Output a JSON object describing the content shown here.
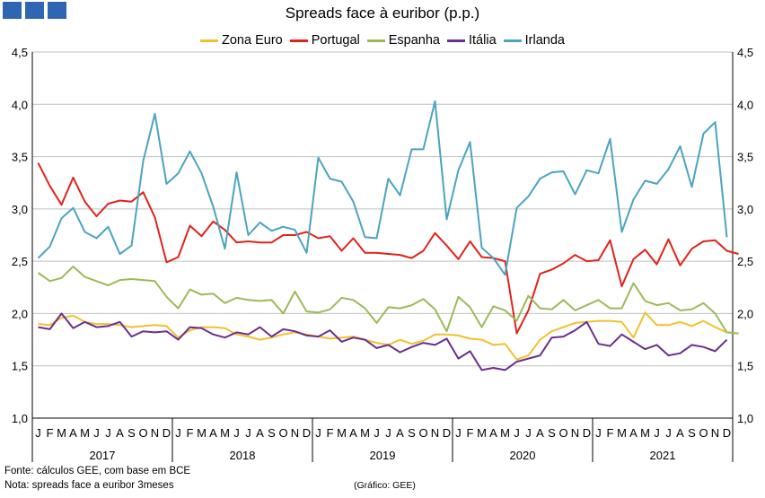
{
  "header": {
    "title": "Spreads face à euribor (p.p.)"
  },
  "footer": {
    "source": "Fonte: cálculos GEE, com base em BCE",
    "note": "Nota: spreads face a euribor 3meses",
    "credit": "(Gráfico: GEE)"
  },
  "chart_data": {
    "type": "line",
    "title": "Spreads face à euribor (p.p.)",
    "ylim": [
      1.0,
      4.5
    ],
    "yticks": [
      "1,0",
      "1,5",
      "2,0",
      "2,5",
      "3,0",
      "3,5",
      "4,0",
      "4,5"
    ],
    "month_labels": [
      "J",
      "F",
      "M",
      "A",
      "M",
      "J",
      "J",
      "A",
      "S",
      "O",
      "N",
      "D"
    ],
    "years": [
      "2017",
      "2018",
      "2019",
      "2020",
      "2021"
    ],
    "grid": true,
    "legend_position": "top",
    "series": [
      {
        "name": "Zona Euro",
        "color": "#f2c12e",
        "values": [
          1.9,
          1.89,
          1.96,
          1.98,
          1.92,
          1.9,
          1.9,
          1.89,
          1.87,
          1.88,
          1.89,
          1.88,
          1.77,
          1.84,
          1.87,
          1.87,
          1.86,
          1.8,
          1.78,
          1.75,
          1.77,
          1.8,
          1.82,
          1.8,
          1.78,
          1.76,
          1.77,
          1.78,
          1.75,
          1.72,
          1.7,
          1.75,
          1.71,
          1.74,
          1.8,
          1.8,
          1.79,
          1.76,
          1.75,
          1.7,
          1.71,
          1.56,
          1.6,
          1.75,
          1.83,
          1.87,
          1.91,
          1.92,
          1.93,
          1.93,
          1.92,
          1.77,
          2.01,
          1.89,
          1.89,
          1.92,
          1.88,
          1.93,
          1.87,
          1.82,
          1.81
        ]
      },
      {
        "name": "Portugal",
        "color": "#e0231c",
        "values": [
          3.44,
          3.22,
          3.04,
          3.3,
          3.07,
          2.93,
          3.05,
          3.08,
          3.07,
          3.16,
          2.92,
          2.49,
          2.54,
          2.84,
          2.74,
          2.88,
          2.8,
          2.68,
          2.69,
          2.68,
          2.68,
          2.75,
          2.75,
          2.78,
          2.72,
          2.74,
          2.6,
          2.72,
          2.58,
          2.58,
          2.57,
          2.56,
          2.53,
          2.6,
          2.77,
          2.65,
          2.52,
          2.69,
          2.54,
          2.53,
          2.5,
          1.81,
          2.03,
          2.38,
          2.42,
          2.48,
          2.56,
          2.5,
          2.51,
          2.7,
          2.26,
          2.52,
          2.61,
          2.47,
          2.71,
          2.46,
          2.62,
          2.69,
          2.7,
          2.6,
          2.57
        ]
      },
      {
        "name": "Espanha",
        "color": "#9bbb59",
        "values": [
          2.39,
          2.31,
          2.34,
          2.45,
          2.35,
          2.31,
          2.27,
          2.32,
          2.33,
          2.32,
          2.31,
          2.16,
          2.05,
          2.23,
          2.18,
          2.19,
          2.1,
          2.15,
          2.13,
          2.12,
          2.13,
          2.0,
          2.21,
          2.02,
          2.01,
          2.04,
          2.15,
          2.13,
          2.05,
          1.91,
          2.06,
          2.05,
          2.08,
          2.14,
          2.04,
          1.83,
          2.16,
          2.06,
          1.87,
          2.07,
          2.03,
          1.93,
          2.17,
          2.05,
          2.04,
          2.13,
          2.03,
          2.08,
          2.13,
          2.05,
          2.05,
          2.29,
          2.12,
          2.08,
          2.1,
          2.03,
          2.04,
          2.1,
          2.0,
          1.82,
          1.81
        ]
      },
      {
        "name": "Itália",
        "color": "#6a2f8f",
        "values": [
          1.87,
          1.85,
          2.0,
          1.86,
          1.92,
          1.87,
          1.88,
          1.92,
          1.78,
          1.83,
          1.82,
          1.83,
          1.75,
          1.87,
          1.86,
          1.8,
          1.77,
          1.82,
          1.8,
          1.87,
          1.78,
          1.85,
          1.83,
          1.79,
          1.78,
          1.84,
          1.73,
          1.77,
          1.75,
          1.67,
          1.7,
          1.63,
          1.68,
          1.72,
          1.7,
          1.76,
          1.57,
          1.64,
          1.46,
          1.48,
          1.46,
          1.54,
          1.57,
          1.6,
          1.77,
          1.78,
          1.84,
          1.92,
          1.71,
          1.69,
          1.8,
          1.73,
          1.66,
          1.7,
          1.6,
          1.62,
          1.7,
          1.68,
          1.64,
          1.75
        ]
      },
      {
        "name": "Irlanda",
        "color": "#4ba4c1",
        "values": [
          2.53,
          2.64,
          2.91,
          3.01,
          2.78,
          2.72,
          2.83,
          2.57,
          2.65,
          3.46,
          3.91,
          3.24,
          3.34,
          3.55,
          3.34,
          3.02,
          2.62,
          3.35,
          2.75,
          2.87,
          2.79,
          2.83,
          2.8,
          2.58,
          3.49,
          3.29,
          3.26,
          3.07,
          2.73,
          2.72,
          3.29,
          3.13,
          3.57,
          3.57,
          4.03,
          2.9,
          3.37,
          3.64,
          2.63,
          2.53,
          2.37,
          3.01,
          3.12,
          3.29,
          3.35,
          3.36,
          3.14,
          3.37,
          3.34,
          3.67,
          2.78,
          3.09,
          3.27,
          3.24,
          3.38,
          3.6,
          3.21,
          3.72,
          3.83,
          2.73
        ]
      }
    ]
  }
}
